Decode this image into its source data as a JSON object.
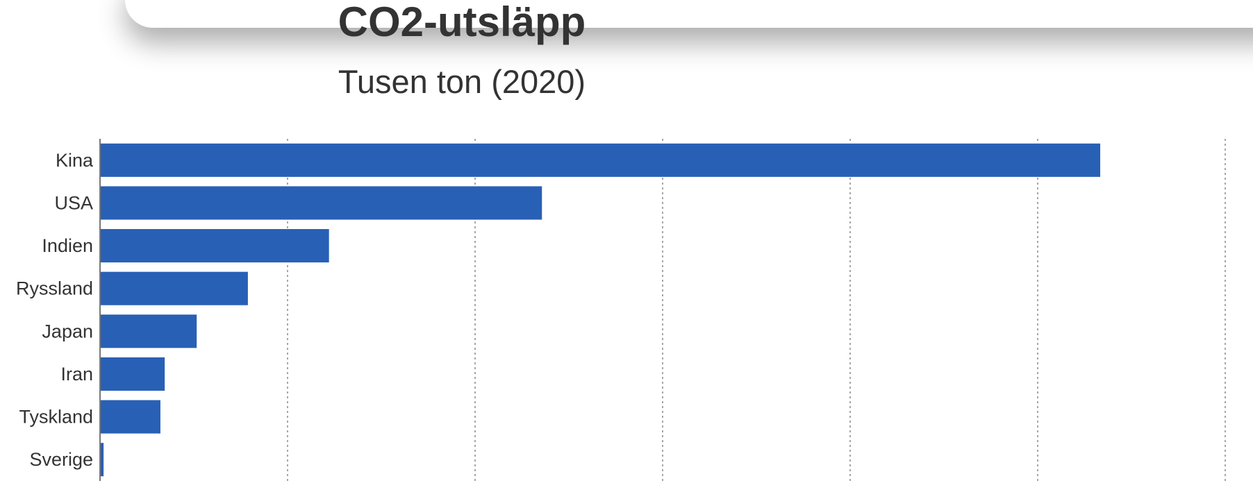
{
  "chart_data": {
    "type": "bar",
    "orientation": "horizontal",
    "title": "CO2-utsläpp",
    "subtitle": "Tusen ton (2020)",
    "categories": [
      "Kina",
      "USA",
      "Indien",
      "Ryssland",
      "Japan",
      "Iran",
      "Tyskland",
      "Sverige"
    ],
    "values": [
      10667000,
      4713000,
      2442000,
      1577000,
      1031000,
      690000,
      644000,
      38000
    ],
    "xlim": [
      0,
      12000000
    ],
    "grid": true,
    "legend": "none",
    "bar_color": "#2860B5"
  }
}
